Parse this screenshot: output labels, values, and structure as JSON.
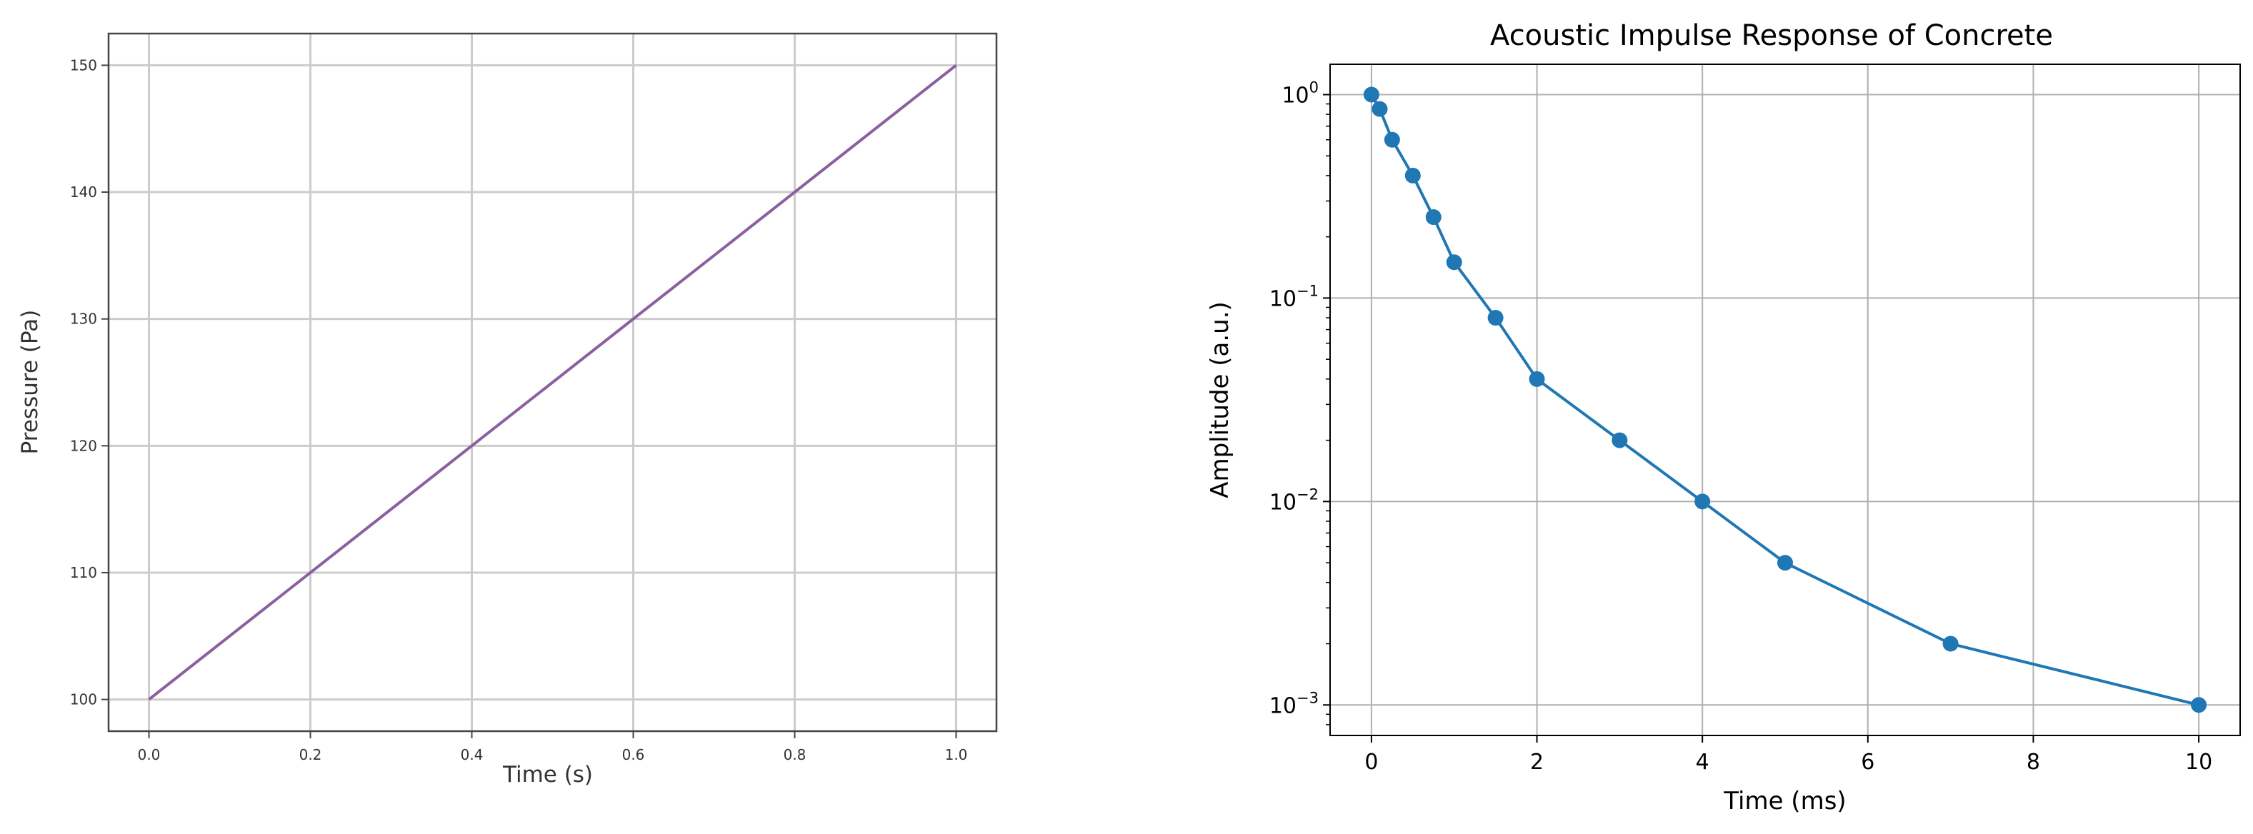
{
  "chart_data": [
    {
      "type": "line",
      "title": "",
      "xlabel": "Time (s)",
      "ylabel": "Pressure (Pa)",
      "xlim": [
        -0.05,
        1.05
      ],
      "ylim": [
        97.5,
        152.5
      ],
      "yscale": "linear",
      "grid": true,
      "xticks": [
        0.0,
        0.2,
        0.4,
        0.6,
        0.8,
        1.0
      ],
      "xtick_labels": [
        "0.0",
        "0.2",
        "0.4",
        "0.6",
        "0.8",
        "1.0"
      ],
      "yticks": [
        100,
        110,
        120,
        130,
        140,
        150
      ],
      "ytick_labels": [
        "100",
        "110",
        "120",
        "130",
        "140",
        "150"
      ],
      "series": [
        {
          "color": "#8c5fa0",
          "x": [
            0.0,
            1.0
          ],
          "y": [
            100,
            150
          ]
        }
      ]
    },
    {
      "type": "line",
      "title": "Acoustic Impulse Response of Concrete",
      "xlabel": "Time (ms)",
      "ylabel": "Amplitude (a.u.)",
      "xlim": [
        -0.5,
        10.5
      ],
      "ylim": [
        0.000708,
        1.41
      ],
      "yscale": "log",
      "grid": true,
      "xticks": [
        0,
        2,
        4,
        6,
        8,
        10
      ],
      "xtick_labels": [
        "0",
        "2",
        "4",
        "6",
        "8",
        "10"
      ],
      "yticks": [
        0.001,
        0.01,
        0.1,
        1
      ],
      "ytick_labels": [
        {
          "base": "10",
          "exp": "−3"
        },
        {
          "base": "10",
          "exp": "−2"
        },
        {
          "base": "10",
          "exp": "−1"
        },
        {
          "base": "10",
          "exp": "0"
        }
      ],
      "series": [
        {
          "color": "#1f77b4",
          "marker": "circle",
          "x": [
            0,
            0.1,
            0.25,
            0.5,
            0.75,
            1,
            1.5,
            2,
            3,
            4,
            5,
            7,
            10
          ],
          "y": [
            1.0,
            0.85,
            0.6,
            0.4,
            0.25,
            0.15,
            0.08,
            0.04,
            0.02,
            0.01,
            0.005,
            0.002,
            0.001
          ]
        }
      ]
    }
  ]
}
